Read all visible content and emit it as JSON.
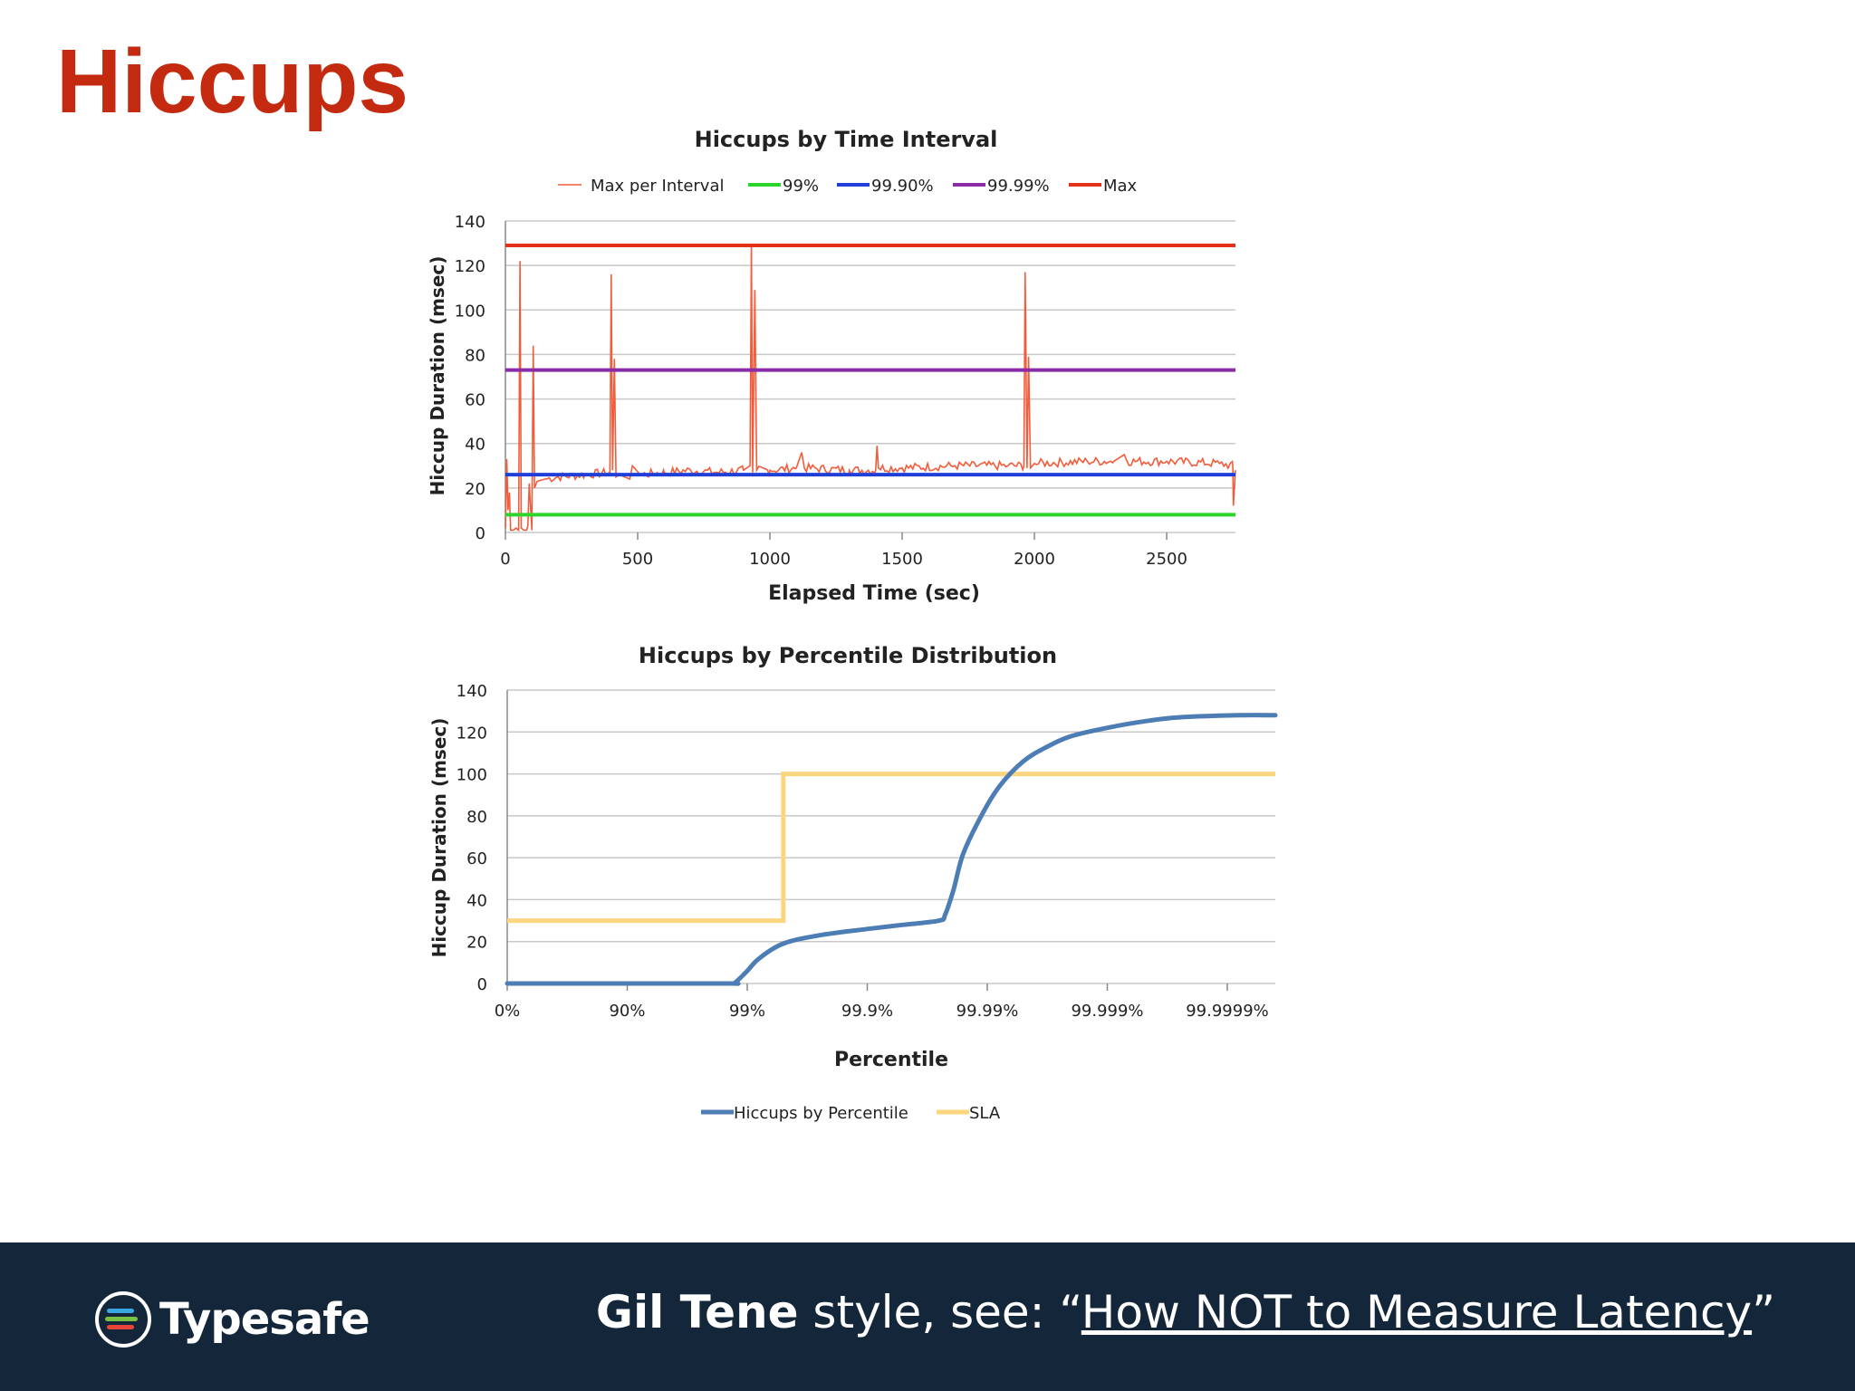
{
  "slide": {
    "title": "Hiccups",
    "title_color": "#c42a0f"
  },
  "footer": {
    "brand": "Typesafe",
    "author": "Gil Tene",
    "text": " style, see: “",
    "link": "How NOT to Measure Latency",
    "close": "”",
    "bg_color": "#14273a"
  },
  "chart_data": [
    {
      "type": "line",
      "title": "Hiccups by Time Interval",
      "xlabel": "Elapsed Time (sec)",
      "ylabel": "Hiccup Duration (msec)",
      "xlim": [
        0,
        2760
      ],
      "ylim": [
        0,
        140
      ],
      "xticks": [
        0,
        500,
        1000,
        1500,
        2000,
        2500
      ],
      "yticks": [
        0,
        20,
        40,
        60,
        80,
        100,
        120,
        140
      ],
      "grid": true,
      "legend": "top",
      "series": [
        {
          "name": "Max per Interval",
          "color": "#f25c3b",
          "baseline": 27,
          "points": [
            [
              0,
              2
            ],
            [
              5,
              33
            ],
            [
              10,
              10
            ],
            [
              15,
              18
            ],
            [
              20,
              1
            ],
            [
              30,
              1
            ],
            [
              40,
              2
            ],
            [
              50,
              1
            ],
            [
              55,
              122
            ],
            [
              60,
              2
            ],
            [
              70,
              1
            ],
            [
              80,
              1
            ],
            [
              85,
              3
            ],
            [
              90,
              22
            ],
            [
              100,
              1
            ],
            [
              105,
              84
            ],
            [
              110,
              20
            ],
            [
              120,
              23
            ],
            [
              150,
              24
            ],
            [
              200,
              25
            ],
            [
              300,
              26
            ],
            [
              395,
              27
            ],
            [
              400,
              116
            ],
            [
              405,
              28
            ],
            [
              412,
              78
            ],
            [
              418,
              25
            ],
            [
              430,
              26
            ],
            [
              470,
              24
            ],
            [
              480,
              30
            ],
            [
              510,
              26
            ],
            [
              600,
              27
            ],
            [
              700,
              28
            ],
            [
              800,
              27
            ],
            [
              900,
              28
            ],
            [
              925,
              30
            ],
            [
              930,
              129
            ],
            [
              935,
              27
            ],
            [
              943,
              109
            ],
            [
              950,
              28
            ],
            [
              1000,
              28
            ],
            [
              1100,
              29
            ],
            [
              1120,
              36
            ],
            [
              1130,
              29
            ],
            [
              1300,
              28
            ],
            [
              1400,
              28
            ],
            [
              1405,
              39
            ],
            [
              1410,
              29
            ],
            [
              1500,
              29
            ],
            [
              1700,
              30
            ],
            [
              1900,
              30
            ],
            [
              1960,
              30
            ],
            [
              1965,
              117
            ],
            [
              1972,
              29
            ],
            [
              1978,
              79
            ],
            [
              1985,
              29
            ],
            [
              2000,
              31
            ],
            [
              2200,
              32
            ],
            [
              2300,
              32
            ],
            [
              2340,
              35
            ],
            [
              2350,
              32
            ],
            [
              2500,
              32
            ],
            [
              2700,
              31
            ],
            [
              2750,
              30
            ],
            [
              2752,
              12
            ],
            [
              2760,
              28
            ]
          ]
        },
        {
          "name": "99%",
          "color": "#2bd52b",
          "value": 8
        },
        {
          "name": "99.90%",
          "color": "#1f3fd8",
          "value": 26
        },
        {
          "name": "99.99%",
          "color": "#8a2ba8",
          "value": 73
        },
        {
          "name": "Max",
          "color": "#e4321a",
          "value": 129
        }
      ]
    },
    {
      "type": "line",
      "title": "Hiccups by Percentile Distribution",
      "xlabel": "Percentile",
      "ylabel": "Hiccup Duration (msec)",
      "xscale": "log-percentile",
      "xlim": [
        0,
        6.4
      ],
      "ylim": [
        0,
        140
      ],
      "xtick_labels": [
        "0%",
        "90%",
        "99%",
        "99.9%",
        "99.99%",
        "99.999%",
        "99.9999%"
      ],
      "xtick_positions": [
        0,
        1,
        2,
        3,
        4,
        5,
        6
      ],
      "yticks": [
        0,
        20,
        40,
        60,
        80,
        100,
        120,
        140
      ],
      "grid": true,
      "legend": "bottom",
      "series": [
        {
          "name": "Hiccups by Percentile",
          "color": "#4c7db5",
          "x": [
            0,
            1.0,
            1.85,
            1.9,
            2.0,
            2.1,
            2.3,
            2.6,
            3.0,
            3.3,
            3.6,
            3.65,
            3.72,
            3.8,
            3.95,
            4.1,
            4.3,
            4.5,
            4.7,
            5.0,
            5.3,
            5.6,
            6.1,
            6.4
          ],
          "values": [
            0,
            0,
            0,
            0.5,
            6,
            12,
            19,
            23,
            26,
            28,
            30,
            33,
            45,
            62,
            80,
            94,
            106,
            113,
            118,
            122,
            125,
            127,
            128,
            128
          ]
        },
        {
          "name": "SLA",
          "color": "#fcd67e",
          "x": [
            0,
            2.3,
            2.3,
            6.4
          ],
          "values": [
            30,
            30,
            100,
            100
          ]
        }
      ]
    }
  ]
}
